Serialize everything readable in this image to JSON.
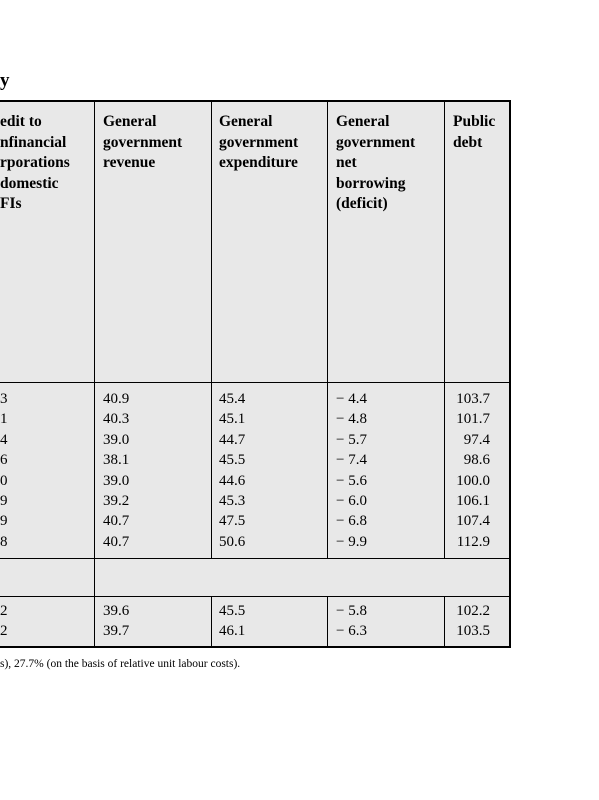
{
  "title_fragment": "y",
  "headers": [
    [
      "edit to",
      "nfinancial",
      "rporations",
      " domestic",
      "FIs"
    ],
    [
      "General",
      "government",
      "revenue"
    ],
    [
      "General",
      "government",
      "expenditure"
    ],
    [
      "General",
      "government",
      "net",
      "borrowing",
      "(deficit)"
    ],
    [
      "Public",
      "debt"
    ]
  ],
  "rows_group1": [
    [
      "3",
      "40.9",
      "45.4",
      "− 4.4",
      "103.7"
    ],
    [
      "1",
      "40.3",
      "45.1",
      "− 4.8",
      "101.7"
    ],
    [
      "4",
      "39.0",
      "44.7",
      "− 5.7",
      "97.4"
    ],
    [
      "6",
      "38.1",
      "45.5",
      "− 7.4",
      "98.6"
    ],
    [
      "0",
      "39.0",
      "44.6",
      "− 5.6",
      "100.0"
    ],
    [
      "9",
      "39.2",
      "45.3",
      "− 6.0",
      "106.1"
    ],
    [
      "9",
      "40.7",
      "47.5",
      "− 6.8",
      "107.4"
    ],
    [
      "8",
      "40.7",
      "50.6",
      "− 9.9",
      "112.9"
    ]
  ],
  "rows_group2": [
    [
      "2",
      "39.6",
      "45.5",
      "− 5.8",
      "102.2"
    ],
    [
      "2",
      "39.7",
      "46.1",
      "− 6.3",
      "103.5"
    ]
  ],
  "footnote": "s), 27.7% (on the basis of relative unit labour costs)."
}
